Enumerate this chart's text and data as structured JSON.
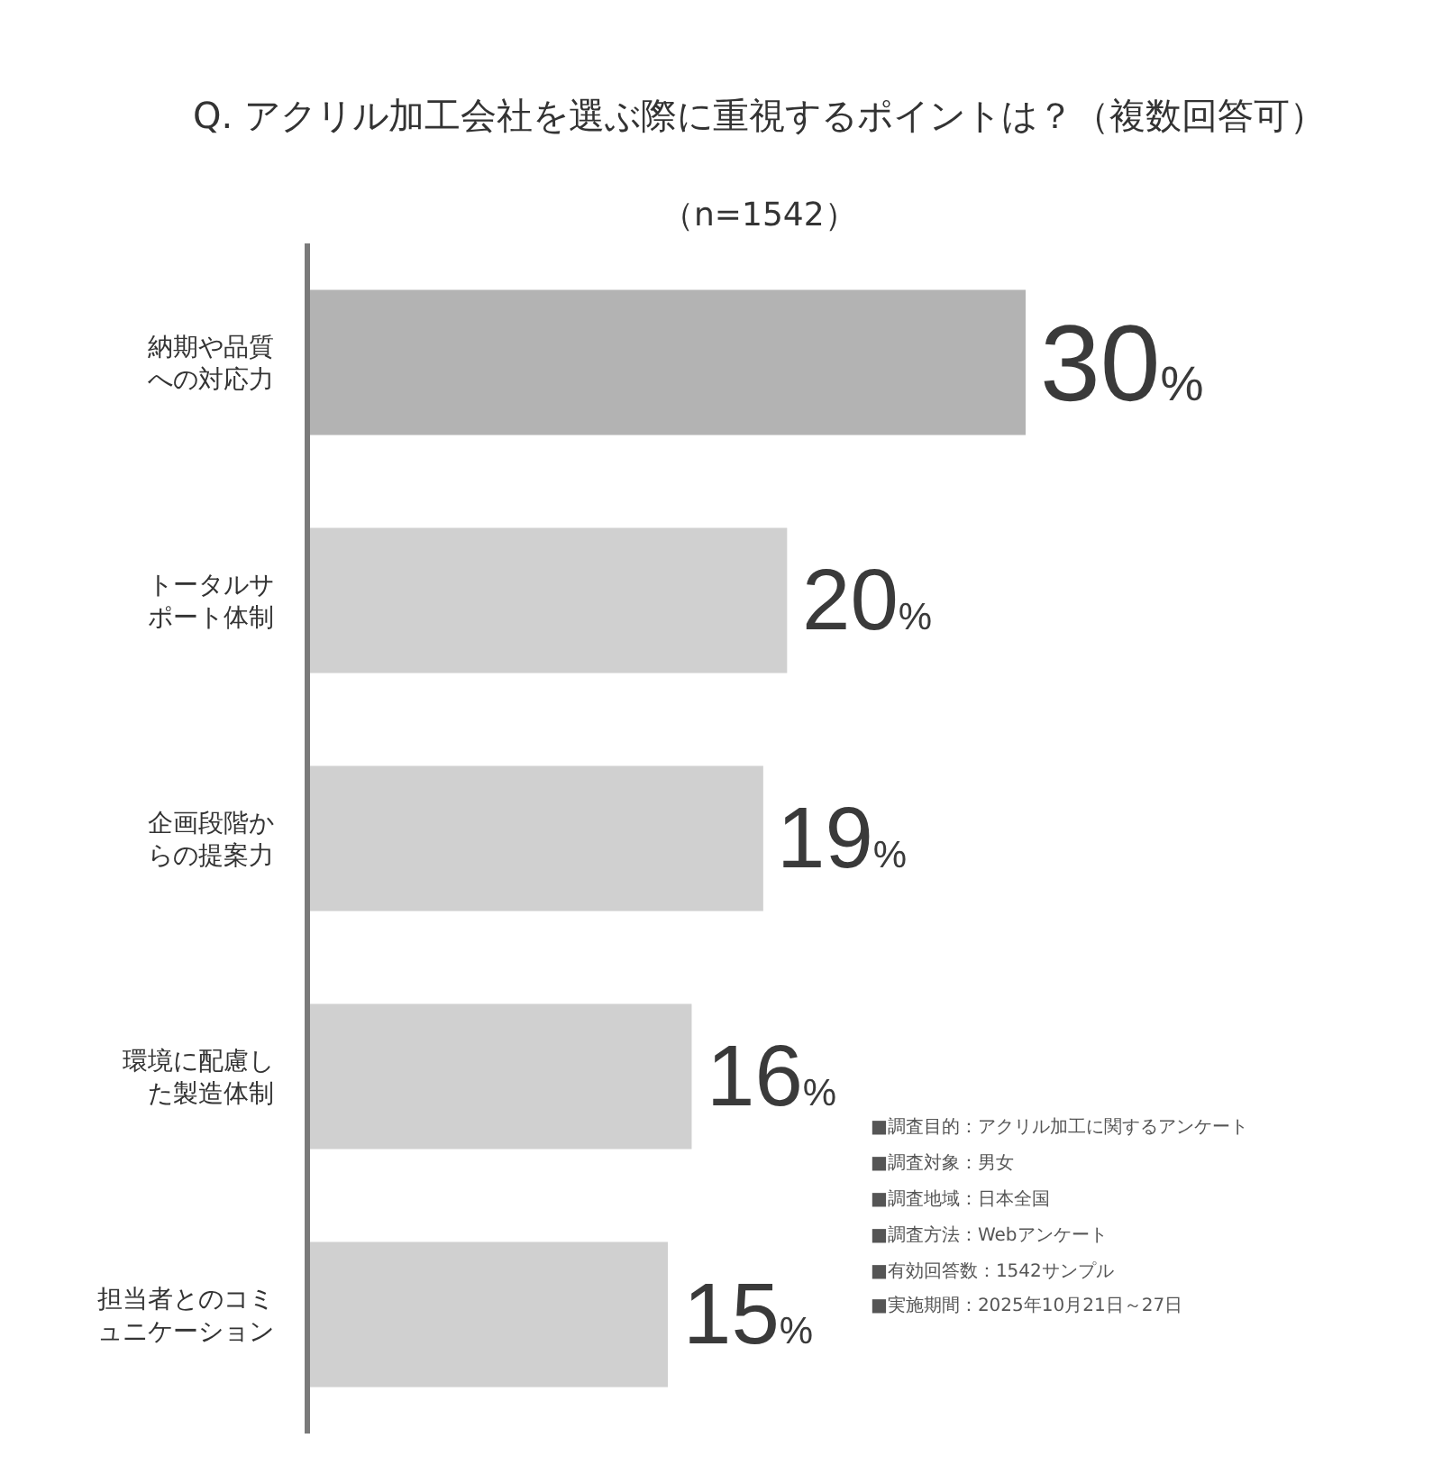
{
  "chart_data": {
    "type": "bar",
    "orientation": "horizontal",
    "title": "Q. アクリル加工会社を選ぶ際に重視するポイントは？（複数回答可）",
    "subtitle": "（n=1542）",
    "categories": [
      "納期や品質への対応力",
      "トータルサポート体制",
      "企画段階からの提案力",
      "環境に配慮した製造体制",
      "担当者とのコミュニケーション"
    ],
    "values": [
      30,
      20,
      19,
      16,
      15
    ],
    "colors": [
      "#b3b3b3",
      "#d0d0d0",
      "#d0d0d0",
      "#d0d0d0",
      "#d0d0d0"
    ],
    "value_labels": [
      "30%",
      "20%",
      "19%",
      "16%",
      "15%"
    ],
    "tick_labels": "y",
    "legend": false,
    "annotations": [
      "■調査目的：アクリル加工に関するアンケート",
      "■調査対象：男女",
      "■調査地域：日本全国",
      "■調査方法：Webアンケート",
      "■有効回答数：1542サンプル",
      "■実施期間：2025年10月21日～27日"
    ]
  }
}
